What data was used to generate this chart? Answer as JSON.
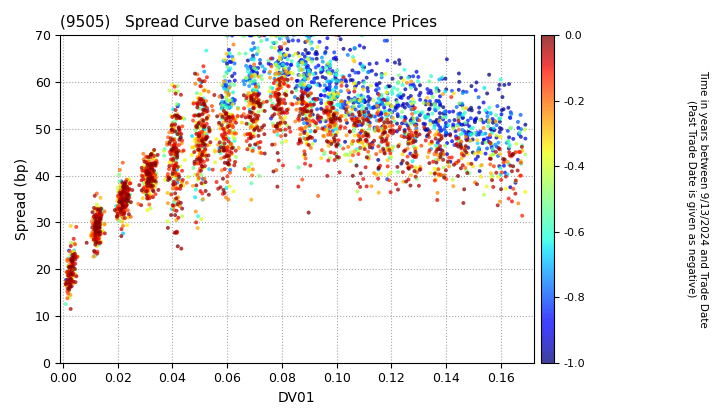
{
  "title": "(9505)   Spread Curve based on Reference Prices",
  "xlabel": "DV01",
  "ylabel": "Spread (bp)",
  "xlim": [
    -0.001,
    0.172
  ],
  "ylim": [
    0,
    70
  ],
  "xticks": [
    0.0,
    0.02,
    0.04,
    0.06,
    0.08,
    0.1,
    0.12,
    0.14,
    0.16
  ],
  "yticks": [
    0,
    10,
    20,
    30,
    40,
    50,
    60,
    70
  ],
  "colorbar_label": "Time in years between 9/13/2024 and Trade Date\n(Past Trade Date is given as negative)",
  "cmap": "jet",
  "clim": [
    -1.0,
    0.0
  ],
  "colorbar_ticks": [
    0.0,
    -0.2,
    -0.4,
    -0.6,
    -0.8,
    -1.0
  ],
  "n_points": 3000,
  "seed": 42,
  "marker_size": 8,
  "alpha": 0.75,
  "background": "#ffffff"
}
